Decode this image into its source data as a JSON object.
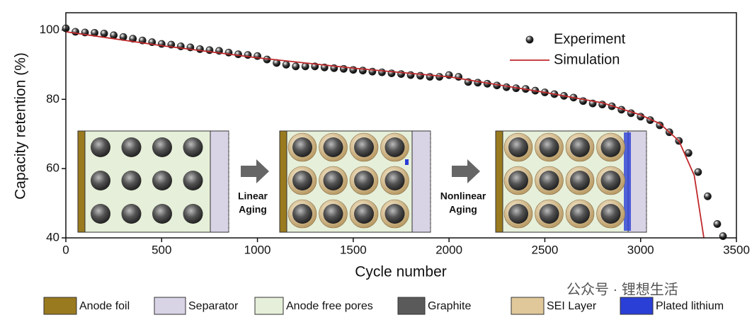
{
  "chart_data": {
    "type": "scatter",
    "xlabel": "Cycle number",
    "ylabel": "Capacity retention (%)",
    "xlim": [
      0,
      3500
    ],
    "ylim": [
      40,
      105
    ],
    "xticks": [
      0,
      500,
      1000,
      1500,
      2000,
      2500,
      3000,
      3500
    ],
    "yticks": [
      40,
      60,
      80,
      100
    ],
    "legend": "upper right",
    "series": [
      {
        "name": "Experiment",
        "style": "markers",
        "color": "#222222",
        "x": [
          0,
          50,
          100,
          150,
          200,
          250,
          300,
          350,
          400,
          450,
          500,
          550,
          600,
          650,
          700,
          750,
          800,
          850,
          900,
          950,
          1000,
          1050,
          1100,
          1150,
          1200,
          1250,
          1300,
          1350,
          1400,
          1450,
          1500,
          1550,
          1600,
          1650,
          1700,
          1750,
          1800,
          1850,
          1900,
          1950,
          2000,
          2050,
          2100,
          2150,
          2200,
          2250,
          2300,
          2350,
          2400,
          2450,
          2500,
          2550,
          2600,
          2650,
          2700,
          2750,
          2800,
          2850,
          2900,
          2950,
          3000,
          3050,
          3100,
          3150,
          3200,
          3250,
          3300,
          3350,
          3400,
          3430
        ],
        "values": [
          100.5,
          99.5,
          99.3,
          99.2,
          99,
          98.5,
          98,
          97.5,
          97,
          96.5,
          96,
          95.8,
          95.3,
          95,
          94.5,
          94.2,
          94,
          93.5,
          93,
          92.8,
          92.5,
          91.5,
          90.5,
          90,
          89.5,
          89.5,
          89.5,
          89.2,
          89,
          88.8,
          88.5,
          88.3,
          88,
          87.8,
          87.5,
          87.3,
          87,
          86.8,
          86.5,
          86.5,
          87,
          86.5,
          85,
          84.8,
          84.5,
          84,
          83.5,
          83.2,
          83,
          82.5,
          82,
          81.5,
          81,
          80.5,
          79.5,
          78.8,
          78.5,
          78,
          77,
          76,
          75,
          74,
          72.5,
          70.5,
          68,
          64.5,
          59,
          52,
          44,
          40.5
        ]
      },
      {
        "name": "Simulation",
        "style": "line",
        "color": "#c0282b",
        "x": [
          0,
          500,
          1000,
          1500,
          2000,
          2500,
          2800,
          3000,
          3100,
          3200,
          3280,
          3330
        ],
        "values": [
          99.5,
          95.5,
          92,
          89,
          86.5,
          82,
          79,
          75.5,
          73,
          68,
          58,
          40
        ]
      }
    ],
    "annotations": [
      {
        "lines": [
          "Linear",
          "Aging"
        ]
      },
      {
        "lines": [
          "Nonlinear",
          "Aging"
        ]
      }
    ],
    "material_legend": [
      {
        "name": "Anode foil",
        "color": "#9a7a1e"
      },
      {
        "name": "Separator",
        "color": "#d9d3e6"
      },
      {
        "name": "Anode free pores",
        "color": "#e6efd9"
      },
      {
        "name": "Graphite",
        "color": "#5a5a5a"
      },
      {
        "name": "SEI Layer",
        "color": "#e0c89a"
      },
      {
        "name": "Plated lithium",
        "color": "#2a3fd6"
      }
    ],
    "watermark": "公众号 · 锂想生活"
  }
}
